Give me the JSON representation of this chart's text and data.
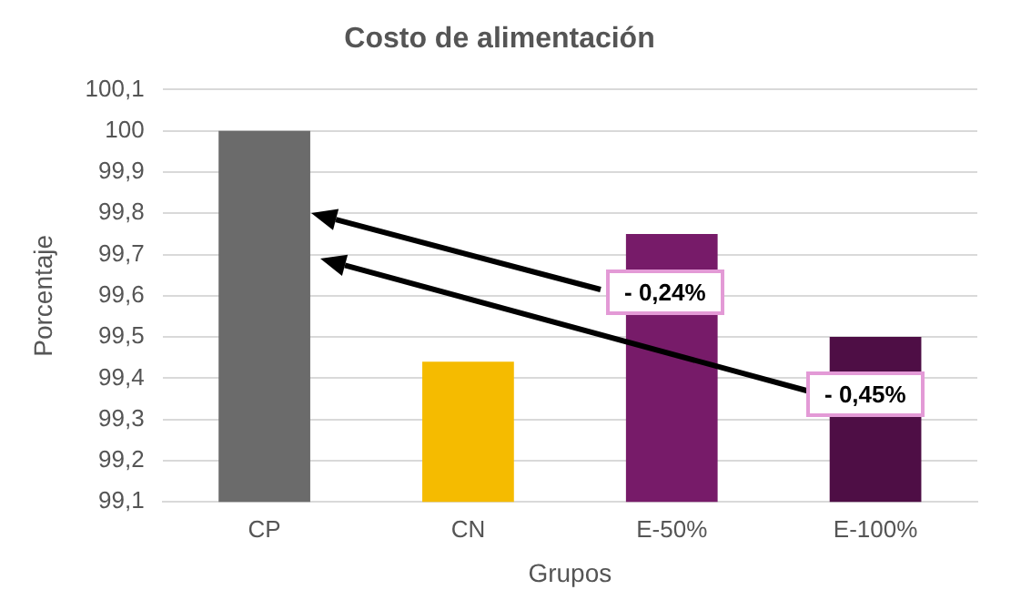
{
  "chart_data": {
    "type": "bar",
    "title": "Costo de alimentación",
    "xlabel": "Grupos",
    "ylabel": "Porcentaje",
    "categories": [
      "CP",
      "CN",
      "E-50%",
      "E-100%"
    ],
    "values": [
      100,
      99.44,
      99.75,
      99.5
    ],
    "colors": [
      "#6b6b6b",
      "#f5bb00",
      "#771b69",
      "#4e0e45"
    ],
    "ylim": [
      99.1,
      100.1
    ],
    "yticks": [
      {
        "value": 99.1,
        "label": "99,1"
      },
      {
        "value": 99.2,
        "label": "99,2"
      },
      {
        "value": 99.3,
        "label": "99,3"
      },
      {
        "value": 99.4,
        "label": "99,4"
      },
      {
        "value": 99.5,
        "label": "99,5"
      },
      {
        "value": 99.6,
        "label": "99,6"
      },
      {
        "value": 99.7,
        "label": "99,7"
      },
      {
        "value": 99.8,
        "label": "99,8"
      },
      {
        "value": 99.9,
        "label": "99,9"
      },
      100,
      {
        "value": 100.1,
        "label": "100,1"
      }
    ],
    "grid": "y",
    "legend": false,
    "annotations": [
      "- 0,24%",
      "- 0,45%"
    ]
  }
}
